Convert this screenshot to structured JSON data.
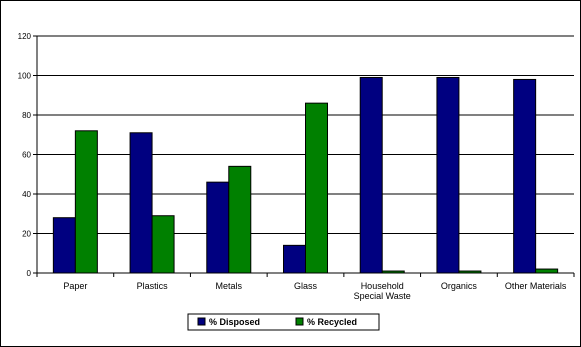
{
  "chart_data": {
    "type": "bar",
    "categories": [
      [
        "Paper"
      ],
      [
        "Plastics"
      ],
      [
        "Metals"
      ],
      [
        "Glass"
      ],
      [
        "Household",
        "Special Waste"
      ],
      [
        "Organics"
      ],
      [
        "Other Materials"
      ]
    ],
    "series": [
      {
        "name": "% Disposed",
        "color": "#000080",
        "values": [
          28,
          71,
          46,
          14,
          99,
          99,
          98
        ]
      },
      {
        "name": "% Recycled",
        "color": "#008000",
        "values": [
          72,
          29,
          54,
          86,
          1,
          1,
          2
        ]
      }
    ],
    "ylim": [
      0,
      120
    ],
    "yticks": [
      0,
      20,
      40,
      60,
      80,
      100,
      120
    ],
    "grid": true,
    "legend": "bottom",
    "title": "",
    "xlabel": "",
    "ylabel": ""
  }
}
